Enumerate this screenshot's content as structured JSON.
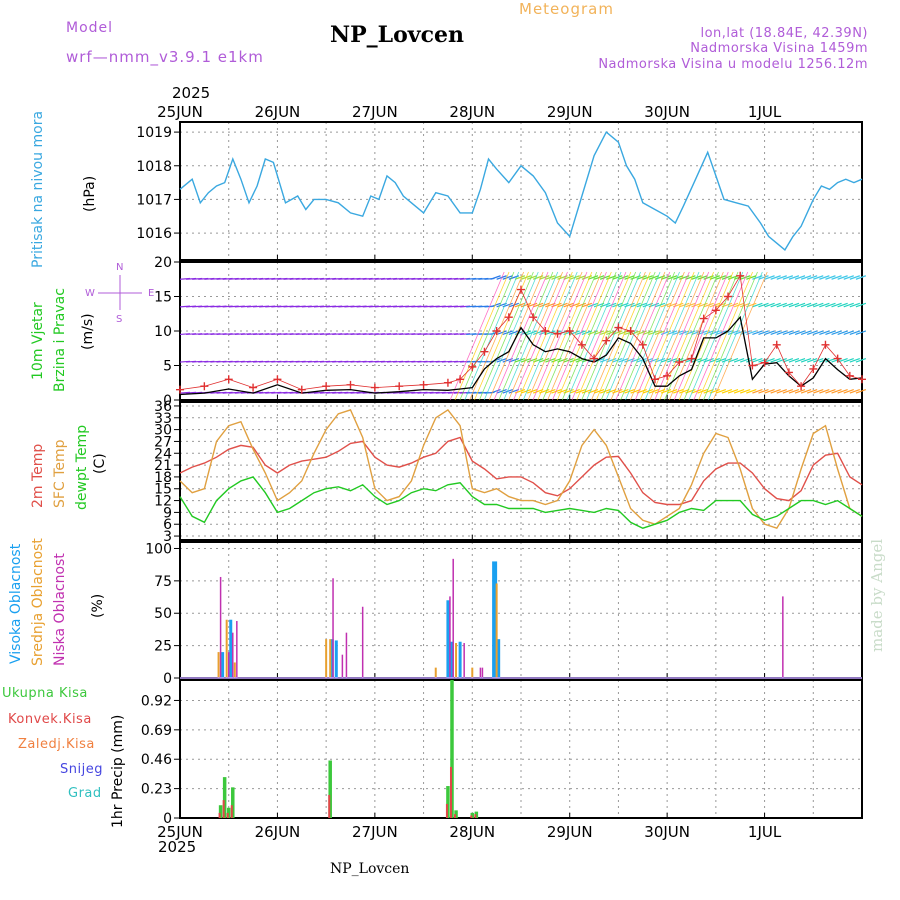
{
  "header": {
    "model_label": "Model",
    "model_name": "wrf—nmm_v3.9.1 e1km",
    "title": "NP_Lovcen",
    "subtitle": "Meteogram",
    "info_lines": [
      "lon,lat (18.84E, 42.39N)",
      "Nadmorska Visina 1459m",
      "Nadmorska Visina u modelu 1256.12m"
    ],
    "year_top": "2025",
    "year_bottom": "2025",
    "footer_title": "NP_Lovcen",
    "credit": "made by Angel"
  },
  "colors": {
    "pressure": "#3aa8e0",
    "t2m": "#e0504a",
    "sfc": "#e0a040",
    "dewpt": "#22c922",
    "gust": "#e03030",
    "high_cloud": "#1aa0f0",
    "mid_cloud": "#e8a030",
    "low_cloud": "#c030b0",
    "total_precip": "#3cc83c",
    "conv_precip": "#e04848",
    "frozen_precip": "#f08040",
    "snow": "#4646e0",
    "graupel": "#30c0c0",
    "purple_label": "#b05cd8"
  },
  "panel_labels": {
    "pressure": {
      "title": "Pritisak na nivou mora",
      "unit": "(hPa)"
    },
    "wind": {
      "title": "10m Vjetar",
      "title2": "Brzina i Pravac",
      "unit": "(m/s)",
      "compass_n": "N",
      "compass_w": "W",
      "compass_e": "E",
      "compass_s": "S"
    },
    "temp": {
      "t2m": "2m Temp",
      "sfc": "SFC Temp",
      "dewpt": "dewpt Temp",
      "unit": "(C)"
    },
    "cloud": {
      "high": "Visoka Oblacnost",
      "mid": "Srednja Oblacnost",
      "low": "Niska Oblacnost",
      "unit": "(%)"
    },
    "precip": {
      "total": "Ukupna Kisa",
      "conv": "Konvek.Kisa",
      "frozen": "Zaledj.Kisa",
      "snow": "Snijeg",
      "graupel": "Grad",
      "unit": "1hr Precip (mm)"
    }
  },
  "chart_data": [
    {
      "type": "line",
      "panel": "pressure",
      "ylim": [
        1015.2,
        1019.3
      ],
      "yticks": [
        "1016",
        "1017",
        "1018",
        "1019"
      ],
      "xticks": [
        "25JUN",
        "26JUN",
        "27JUN",
        "28JUN",
        "29JUN",
        "30JUN",
        "1JUL"
      ],
      "grid": true,
      "series": [
        {
          "name": "Pritisak na nivou mora",
          "x": [
            0,
            3,
            5,
            7,
            9,
            11,
            13,
            15,
            17,
            19,
            21,
            23,
            26,
            29,
            31,
            33,
            36,
            39,
            42,
            45,
            47,
            49,
            51,
            53,
            55,
            57,
            60,
            63,
            66,
            69,
            72,
            74,
            76,
            78,
            81,
            84,
            87,
            90,
            93,
            96,
            99,
            102,
            105,
            108,
            110,
            112,
            114,
            117,
            120,
            122,
            124,
            127,
            130,
            132,
            134,
            137,
            140,
            143,
            145,
            147,
            149,
            151,
            153,
            156,
            158,
            160,
            162,
            164,
            166,
            168
          ],
          "values": [
            1017.3,
            1017.6,
            1016.9,
            1017.2,
            1017.4,
            1017.5,
            1018.2,
            1017.6,
            1016.9,
            1017.4,
            1018.2,
            1018.1,
            1016.9,
            1017.1,
            1016.7,
            1017,
            1017,
            1016.9,
            1016.6,
            1016.5,
            1017.1,
            1017,
            1017.7,
            1017.5,
            1017.1,
            1016.9,
            1016.6,
            1017.2,
            1017.1,
            1016.6,
            1016.6,
            1017.3,
            1018.2,
            1017.9,
            1017.5,
            1018,
            1017.7,
            1017.2,
            1016.3,
            1015.9,
            1017.1,
            1018.3,
            1019,
            1018.7,
            1018,
            1017.6,
            1016.9,
            1016.7,
            1016.5,
            1016.3,
            1016.8,
            1017.6,
            1018.4,
            1017.7,
            1017,
            1016.9,
            1016.8,
            1016.3,
            1015.9,
            1015.7,
            1015.5,
            1015.9,
            1016.2,
            1017,
            1017.4,
            1017.3,
            1017.5,
            1017.6,
            1017.5,
            1017.6
          ]
        }
      ]
    },
    {
      "type": "line",
      "panel": "wind",
      "ylim": [
        0,
        20
      ],
      "yticks": [
        "0",
        "5",
        "10",
        "15",
        "20"
      ],
      "grid": true,
      "series": [
        {
          "name": "10m Vjetar",
          "x": [
            0,
            6,
            12,
            18,
            24,
            30,
            36,
            42,
            48,
            54,
            60,
            66,
            69,
            72,
            75,
            78,
            81,
            84,
            87,
            90,
            93,
            96,
            99,
            102,
            105,
            108,
            111,
            114,
            117,
            120,
            123,
            126,
            129,
            132,
            135,
            138,
            141,
            144,
            147,
            150,
            153,
            156,
            159,
            162,
            165,
            168
          ],
          "values": [
            0.8,
            1,
            1.6,
            1,
            2.2,
            1,
            1.4,
            1.5,
            1,
            1.2,
            1.5,
            1.4,
            1.6,
            1.8,
            4.5,
            6,
            7,
            10.5,
            8,
            7,
            7.4,
            7,
            6,
            5.5,
            6.5,
            9,
            8.2,
            6,
            2,
            2,
            3.5,
            4.4,
            9,
            9,
            10,
            12,
            3,
            5.2,
            5.4,
            3.5,
            2,
            3.2,
            6,
            4.4,
            3,
            3.2
          ]
        },
        {
          "name": "gust",
          "x": [
            0,
            6,
            12,
            18,
            24,
            30,
            36,
            42,
            48,
            54,
            60,
            66,
            69,
            72,
            75,
            78,
            81,
            84,
            87,
            90,
            93,
            96,
            99,
            102,
            105,
            108,
            111,
            114,
            117,
            120,
            123,
            126,
            129,
            132,
            135,
            138,
            141,
            144,
            147,
            150,
            153,
            156,
            159,
            162,
            165,
            168
          ],
          "values": [
            1.5,
            2,
            3,
            1.8,
            3,
            1.5,
            2,
            2.2,
            1.8,
            2,
            2.2,
            2.5,
            3,
            4.8,
            7,
            10,
            12,
            16,
            12,
            10,
            9.6,
            10,
            8,
            6,
            8.6,
            10.5,
            10,
            8,
            3,
            3.5,
            5.5,
            6,
            11.8,
            13,
            15,
            18,
            5,
            5.4,
            8,
            4,
            2,
            4.5,
            8,
            6,
            3.5,
            3
          ]
        }
      ]
    },
    {
      "type": "line",
      "panel": "temp",
      "ylim": [
        2,
        37
      ],
      "yticks": [
        "3",
        "6",
        "9",
        "12",
        "15",
        "18",
        "21",
        "24",
        "27",
        "30",
        "33",
        "36"
      ],
      "grid": true,
      "series": [
        {
          "name": "2m Temp",
          "x": [
            0,
            3,
            6,
            9,
            12,
            15,
            18,
            21,
            24,
            27,
            30,
            33,
            36,
            39,
            42,
            45,
            48,
            51,
            54,
            57,
            60,
            63,
            66,
            69,
            72,
            75,
            78,
            81,
            84,
            87,
            90,
            93,
            96,
            99,
            102,
            105,
            108,
            111,
            114,
            117,
            120,
            123,
            126,
            129,
            132,
            135,
            138,
            141,
            144,
            147,
            150,
            153,
            156,
            159,
            162,
            165,
            168
          ],
          "values": [
            19,
            20.5,
            21.5,
            23,
            25,
            26,
            25.5,
            21,
            19,
            21,
            22,
            22.5,
            23,
            24.5,
            26.5,
            27,
            23,
            21,
            20.5,
            21.5,
            23,
            24,
            27,
            28,
            22,
            20,
            17.5,
            18,
            18,
            16.5,
            14,
            13.2,
            15,
            18,
            21,
            23,
            23.2,
            19,
            14,
            11.5,
            11,
            11,
            12,
            17,
            20,
            21.5,
            21.5,
            19,
            15,
            12.5,
            12,
            14.5,
            21,
            23.5,
            24,
            18,
            16
          ]
        },
        {
          "name": "SFC Temp",
          "x": [
            0,
            3,
            6,
            9,
            12,
            15,
            18,
            21,
            24,
            27,
            30,
            33,
            36,
            39,
            42,
            45,
            48,
            51,
            54,
            57,
            60,
            63,
            66,
            69,
            72,
            75,
            78,
            81,
            84,
            87,
            90,
            93,
            96,
            99,
            102,
            105,
            108,
            111,
            114,
            117,
            120,
            123,
            126,
            129,
            132,
            135,
            138,
            141,
            144,
            147,
            150,
            153,
            156,
            159,
            162,
            165,
            168
          ],
          "values": [
            17,
            14,
            15,
            27,
            31,
            32,
            25,
            19,
            12,
            14,
            17,
            24,
            30,
            34,
            35,
            28,
            15,
            12,
            13,
            17,
            26,
            33,
            35,
            31,
            15,
            14,
            15,
            13,
            12,
            12,
            11,
            12,
            17,
            26,
            30,
            26,
            18,
            10,
            7,
            6,
            8,
            10,
            16,
            24,
            29,
            28,
            20,
            10,
            6,
            5,
            10,
            20,
            29,
            31,
            20,
            10,
            8
          ]
        },
        {
          "name": "dewpt Temp",
          "x": [
            0,
            3,
            6,
            9,
            12,
            15,
            18,
            21,
            24,
            27,
            30,
            33,
            36,
            39,
            42,
            45,
            48,
            51,
            54,
            57,
            60,
            63,
            66,
            69,
            72,
            75,
            78,
            81,
            84,
            87,
            90,
            93,
            96,
            99,
            102,
            105,
            108,
            111,
            114,
            117,
            120,
            123,
            126,
            129,
            132,
            135,
            138,
            141,
            144,
            147,
            150,
            153,
            156,
            159,
            162,
            165,
            168
          ],
          "values": [
            13,
            8,
            6.5,
            12,
            15,
            17,
            18,
            14,
            9,
            10,
            12,
            14,
            15,
            15.5,
            14.5,
            16,
            13,
            11,
            12,
            14,
            15,
            14.5,
            16,
            16.5,
            13,
            11,
            11,
            10,
            10,
            10,
            9,
            9.5,
            10,
            9.5,
            9,
            10,
            9.5,
            6.5,
            5,
            6,
            7,
            9,
            10,
            9.5,
            12,
            12,
            12,
            8.5,
            7,
            8,
            10,
            12,
            12,
            11,
            12,
            10,
            8
          ]
        }
      ]
    },
    {
      "type": "bar",
      "panel": "cloud",
      "ylim": [
        0,
        105
      ],
      "yticks": [
        "0",
        "25",
        "50",
        "75",
        "100"
      ],
      "grid": true,
      "series": [
        {
          "name": "Visoka Oblacnost",
          "x": [
            10.5,
            12.5,
            37.5,
            38.5,
            66,
            67,
            69,
            77.5,
            78.5
          ],
          "values": [
            20,
            45,
            30,
            29,
            60,
            28,
            28,
            90,
            30
          ]
        },
        {
          "name": "Srednja Oblacnost",
          "x": [
            9.5,
            11.5,
            13.5,
            36,
            37,
            63,
            68,
            72,
            78
          ],
          "values": [
            20,
            45,
            12,
            30,
            30,
            8,
            27,
            8,
            73
          ]
        },
        {
          "name": "Niska Oblacnost",
          "x": [
            10,
            12,
            13,
            14,
            37.7,
            40,
            41,
            45,
            66.5,
            67.3,
            70,
            74,
            74.5,
            148.5
          ],
          "values": [
            78,
            20,
            35,
            44,
            77,
            18,
            35,
            55,
            63,
            92,
            27,
            8,
            8,
            63
          ]
        }
      ]
    },
    {
      "type": "bar",
      "panel": "precip",
      "ylim": [
        0,
        1.08
      ],
      "yticks": [
        "0",
        "0.23",
        "0.46",
        "0.69",
        "0.92"
      ],
      "grid": true,
      "series": [
        {
          "name": "Ukupna Kisa",
          "x": [
            10,
            11,
            12,
            13,
            37,
            66,
            67,
            68,
            72,
            73
          ],
          "values": [
            0.1,
            0.32,
            0.08,
            0.24,
            0.45,
            0.25,
            1.08,
            0.06,
            0.04,
            0.05
          ]
        },
        {
          "name": "Konvek.Kisa",
          "x": [
            10,
            11,
            12,
            13,
            37,
            66,
            67,
            68,
            72,
            73
          ],
          "values": [
            0.04,
            0.14,
            0.04,
            0.1,
            0.18,
            0.11,
            0.4,
            0.03,
            0.02,
            0.03
          ]
        }
      ]
    }
  ]
}
